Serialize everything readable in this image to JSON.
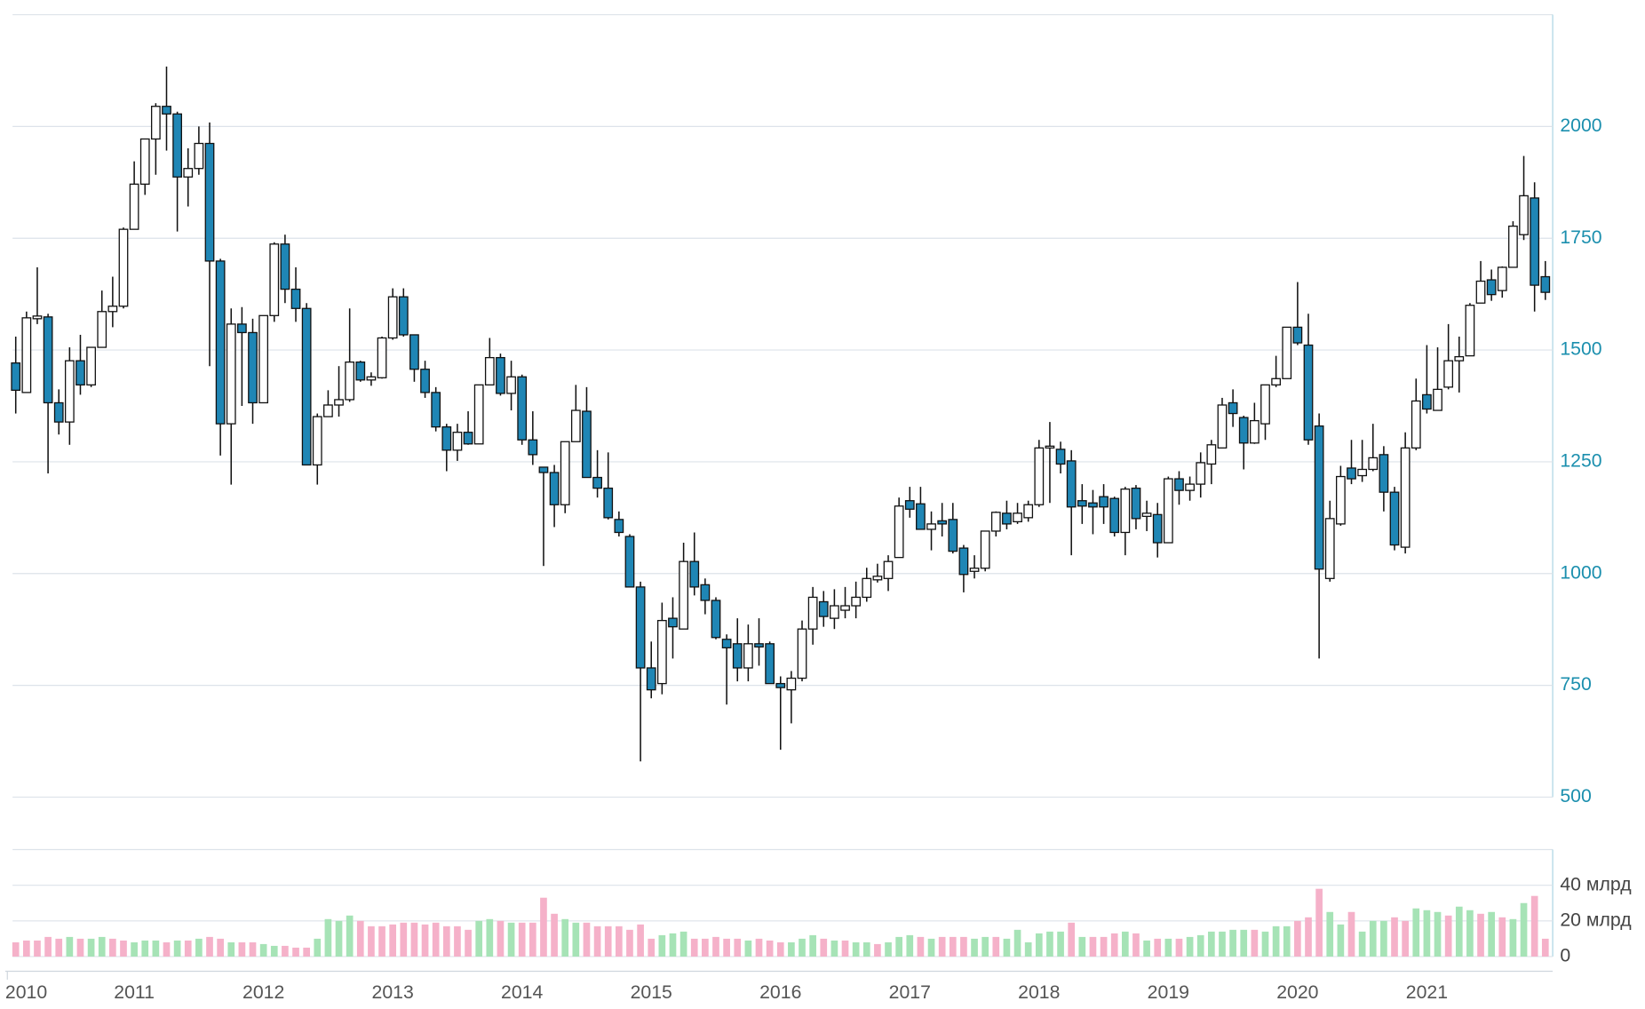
{
  "chart_data": [
    {
      "type": "candlestick",
      "categories": [
        "2010",
        null,
        null,
        null,
        null,
        null,
        null,
        null,
        null,
        null,
        null,
        "2011",
        null,
        null,
        null,
        null,
        null,
        null,
        null,
        null,
        null,
        null,
        null,
        "2012",
        null,
        null,
        null,
        null,
        null,
        null,
        null,
        null,
        null,
        null,
        null,
        "2013",
        null,
        null,
        null,
        null,
        null,
        null,
        null,
        null,
        null,
        null,
        null,
        "2014",
        null,
        null,
        null,
        null,
        null,
        null,
        null,
        null,
        null,
        null,
        null,
        "2015",
        null,
        null,
        null,
        null,
        null,
        null,
        null,
        null,
        null,
        null,
        null,
        "2016",
        null,
        null,
        null,
        null,
        null,
        null,
        null,
        null,
        null,
        null,
        null,
        "2017",
        null,
        null,
        null,
        null,
        null,
        null,
        null,
        null,
        null,
        null,
        null,
        "2018",
        null,
        null,
        null,
        null,
        null,
        null,
        null,
        null,
        null,
        null,
        null,
        "2019",
        null,
        null,
        null,
        null,
        null,
        null,
        null,
        null,
        null,
        null,
        null,
        "2020",
        null,
        null,
        null,
        null,
        null,
        null,
        null,
        null,
        null,
        null,
        null,
        "2021",
        null,
        null,
        null,
        null,
        null,
        null,
        null,
        null,
        null,
        null,
        null
      ],
      "open": [
        1471,
        1405,
        1570,
        1574,
        1382,
        1339,
        1476,
        1422,
        1506,
        1586,
        1598,
        1770,
        1871,
        1972,
        2045,
        2028,
        1887,
        1906,
        1962,
        1699,
        1335,
        1558,
        1539,
        1382,
        1577,
        1737,
        1636,
        1593,
        1243,
        1351,
        1377,
        1389,
        1473,
        1433,
        1438,
        1527,
        1619,
        1534,
        1457,
        1405,
        1328,
        1276,
        1316,
        1290,
        1422,
        1483,
        1403,
        1440,
        1299,
        1238,
        1226,
        1154,
        1295,
        1363,
        1215,
        1191,
        1121,
        1083,
        970,
        789,
        754,
        900,
        876,
        1027,
        975,
        940,
        853,
        843,
        789,
        843,
        843,
        754,
        740,
        766,
        876,
        937,
        900,
        918,
        928,
        947,
        986,
        989,
        1036,
        1163,
        1156,
        1099,
        1118,
        1121,
        1057,
        1005,
        1012,
        1095,
        1135,
        1116,
        1125,
        1154,
        1281,
        1278,
        1252,
        1163,
        1158,
        1172,
        1168,
        1092,
        1191,
        1128,
        1132,
        1069,
        1212,
        1186,
        1200,
        1245,
        1281,
        1382,
        1349,
        1292,
        1335,
        1422,
        1436,
        1551,
        1511,
        1330,
        989,
        1111,
        1236,
        1219,
        1233,
        1266,
        1182,
        1059,
        1281,
        1400,
        1365,
        1417,
        1476,
        1487,
        1605,
        1657,
        1633,
        1685,
        1758,
        1840,
        1664
      ],
      "high": [
        1530,
        1586,
        1685,
        1581,
        1412,
        1506,
        1534,
        1506,
        1633,
        1664,
        1774,
        1922,
        1972,
        2052,
        2134,
        2033,
        1951,
        2000,
        2009,
        1704,
        1593,
        1596,
        1570,
        1577,
        1741,
        1758,
        1685,
        1605,
        1358,
        1410,
        1464,
        1593,
        1476,
        1450,
        1530,
        1638,
        1638,
        1534,
        1476,
        1417,
        1335,
        1335,
        1363,
        1422,
        1527,
        1492,
        1476,
        1445,
        1363,
        1238,
        1243,
        1295,
        1422,
        1417,
        1276,
        1271,
        1139,
        1088,
        982,
        848,
        935,
        947,
        1069,
        1092,
        989,
        947,
        864,
        900,
        886,
        900,
        848,
        770,
        782,
        895,
        970,
        961,
        965,
        970,
        982,
        1013,
        1022,
        1041,
        1170,
        1194,
        1194,
        1139,
        1158,
        1158,
        1064,
        1041,
        1095,
        1139,
        1163,
        1158,
        1163,
        1299,
        1339,
        1295,
        1276,
        1200,
        1187,
        1200,
        1172,
        1194,
        1198,
        1163,
        1158,
        1217,
        1229,
        1217,
        1271,
        1299,
        1393,
        1412,
        1353,
        1382,
        1422,
        1487,
        1551,
        1652,
        1581,
        1358,
        1163,
        1241,
        1299,
        1299,
        1335,
        1285,
        1194,
        1316,
        1436,
        1511,
        1506,
        1558,
        1530,
        1605,
        1699,
        1680,
        1687,
        1788,
        1934,
        1875,
        1699
      ],
      "low": [
        1358,
        1405,
        1558,
        1224,
        1311,
        1288,
        1400,
        1417,
        1506,
        1551,
        1593,
        1770,
        1847,
        1892,
        1946,
        1765,
        1821,
        1892,
        1464,
        1264,
        1199,
        1375,
        1335,
        1382,
        1563,
        1605,
        1563,
        1243,
        1199,
        1351,
        1351,
        1384,
        1429,
        1420,
        1436,
        1523,
        1530,
        1429,
        1393,
        1318,
        1229,
        1252,
        1288,
        1290,
        1422,
        1398,
        1365,
        1288,
        1243,
        1017,
        1104,
        1135,
        1295,
        1215,
        1170,
        1121,
        1083,
        970,
        580,
        721,
        730,
        810,
        876,
        951,
        909,
        853,
        707,
        759,
        759,
        794,
        754,
        606,
        665,
        759,
        841,
        881,
        876,
        900,
        900,
        937,
        980,
        961,
        1036,
        1125,
        1099,
        1052,
        1083,
        1045,
        958,
        989,
        1005,
        1083,
        1099,
        1111,
        1116,
        1149,
        1158,
        1224,
        1041,
        1111,
        1088,
        1111,
        1083,
        1041,
        1099,
        1095,
        1036,
        1069,
        1154,
        1163,
        1170,
        1200,
        1281,
        1328,
        1233,
        1290,
        1299,
        1417,
        1436,
        1511,
        1288,
        810,
        982,
        1107,
        1200,
        1205,
        1229,
        1139,
        1052,
        1045,
        1276,
        1358,
        1365,
        1412,
        1405,
        1487,
        1605,
        1610,
        1617,
        1685,
        1746,
        1586,
        1612
      ],
      "close": [
        1410,
        1572,
        1576,
        1382,
        1339,
        1476,
        1422,
        1506,
        1586,
        1598,
        1770,
        1871,
        1972,
        2045,
        2028,
        1887,
        1906,
        1962,
        1699,
        1335,
        1558,
        1539,
        1382,
        1577,
        1737,
        1636,
        1593,
        1243,
        1351,
        1377,
        1389,
        1473,
        1433,
        1440,
        1527,
        1619,
        1534,
        1457,
        1405,
        1328,
        1276,
        1316,
        1290,
        1422,
        1483,
        1403,
        1440,
        1299,
        1266,
        1226,
        1154,
        1295,
        1365,
        1215,
        1191,
        1125,
        1092,
        970,
        789,
        740,
        895,
        881,
        1027,
        970,
        940,
        857,
        834,
        789,
        843,
        836,
        754,
        745,
        766,
        876,
        947,
        904,
        928,
        928,
        947,
        989,
        994,
        1027,
        1151,
        1144,
        1099,
        1111,
        1111,
        1050,
        998,
        1012,
        1095,
        1137,
        1111,
        1135,
        1154,
        1281,
        1285,
        1245,
        1149,
        1151,
        1149,
        1149,
        1092,
        1189,
        1123,
        1135,
        1069,
        1212,
        1186,
        1200,
        1248,
        1288,
        1377,
        1358,
        1292,
        1342,
        1422,
        1436,
        1551,
        1516,
        1299,
        1010,
        1123,
        1217,
        1212,
        1233,
        1259,
        1182,
        1064,
        1281,
        1386,
        1368,
        1412,
        1476,
        1485,
        1600,
        1654,
        1624,
        1685,
        1777,
        1845,
        1645,
        1629
      ],
      "up_color": "#ffffff",
      "down_color": "#1f86b5",
      "ylim": [
        500,
        2250
      ],
      "yticks": [
        500,
        750,
        1000,
        1250,
        1500,
        1750,
        2000
      ],
      "grid": true
    },
    {
      "type": "bar",
      "values": [
        8,
        9,
        9,
        11,
        10,
        11,
        10,
        10,
        11,
        10,
        9,
        8,
        9,
        9,
        8,
        9,
        9,
        10,
        11,
        10,
        8,
        8,
        8,
        7,
        6,
        6,
        5,
        5,
        10,
        21,
        20,
        23,
        20,
        17,
        17,
        18,
        19,
        19,
        18,
        19,
        17,
        17,
        15,
        20,
        21,
        20,
        19,
        19,
        19,
        33,
        24,
        21,
        19,
        19,
        17,
        17,
        17,
        15,
        18,
        10,
        12,
        13,
        14,
        10,
        10,
        11,
        10,
        10,
        9,
        10,
        9,
        8,
        8,
        10,
        12,
        10,
        9,
        9,
        8,
        8,
        7,
        8,
        11,
        12,
        11,
        10,
        11,
        11,
        11,
        10,
        11,
        11,
        10,
        15,
        8,
        13,
        14,
        14,
        19,
        11,
        11,
        11,
        13,
        14,
        13,
        9,
        10,
        10,
        10,
        11,
        12,
        14,
        14,
        15,
        15,
        15,
        14,
        17,
        17,
        20,
        22,
        38,
        25,
        18,
        25,
        14,
        20,
        20,
        22,
        20,
        27,
        26,
        25,
        23,
        28,
        26,
        24,
        25,
        22,
        21,
        30,
        34,
        10
      ],
      "colors": [
        "#f5b1c9",
        "#f5b1c9",
        "#f5b1c9",
        "#f5b1c9",
        "#f5b1c9",
        "#a6e3b6",
        "#f5b1c9",
        "#a6e3b6",
        "#a6e3b6",
        "#f5b1c9",
        "#f5b1c9",
        "#a6e3b6",
        "#a6e3b6",
        "#a6e3b6",
        "#f5b1c9",
        "#a6e3b6",
        "#f5b1c9",
        "#a6e3b6",
        "#f5b1c9",
        "#f5b1c9",
        "#a6e3b6",
        "#f5b1c9",
        "#f5b1c9",
        "#a6e3b6",
        "#a6e3b6",
        "#f5b1c9",
        "#f5b1c9",
        "#f5b1c9",
        "#a6e3b6",
        "#a6e3b6",
        "#a6e3b6",
        "#a6e3b6",
        "#f5b1c9",
        "#f5b1c9",
        "#f5b1c9",
        "#f5b1c9",
        "#f5b1c9",
        "#f5b1c9",
        "#f5b1c9",
        "#f5b1c9",
        "#f5b1c9",
        "#f5b1c9",
        "#f5b1c9",
        "#a6e3b6",
        "#a6e3b6",
        "#f5b1c9",
        "#a6e3b6",
        "#f5b1c9",
        "#f5b1c9",
        "#f5b1c9",
        "#f5b1c9",
        "#a6e3b6",
        "#a6e3b6",
        "#f5b1c9",
        "#f5b1c9",
        "#f5b1c9",
        "#f5b1c9",
        "#f5b1c9",
        "#f5b1c9",
        "#f5b1c9",
        "#a6e3b6",
        "#a6e3b6",
        "#a6e3b6",
        "#f5b1c9",
        "#f5b1c9",
        "#f5b1c9",
        "#f5b1c9",
        "#f5b1c9",
        "#a6e3b6",
        "#f5b1c9",
        "#f5b1c9",
        "#f5b1c9",
        "#a6e3b6",
        "#a6e3b6",
        "#a6e3b6",
        "#f5b1c9",
        "#a6e3b6",
        "#f5b1c9",
        "#a6e3b6",
        "#a6e3b6",
        "#f5b1c9",
        "#a6e3b6",
        "#a6e3b6",
        "#a6e3b6",
        "#f5b1c9",
        "#a6e3b6",
        "#f5b1c9",
        "#f5b1c9",
        "#f5b1c9",
        "#a6e3b6",
        "#a6e3b6",
        "#f5b1c9",
        "#a6e3b6",
        "#a6e3b6",
        "#a6e3b6",
        "#a6e3b6",
        "#a6e3b6",
        "#a6e3b6",
        "#f5b1c9",
        "#a6e3b6",
        "#f5b1c9",
        "#f5b1c9",
        "#f5b1c9",
        "#a6e3b6",
        "#f5b1c9",
        "#a6e3b6",
        "#f5b1c9",
        "#a6e3b6",
        "#f5b1c9",
        "#a6e3b6",
        "#a6e3b6",
        "#a6e3b6",
        "#a6e3b6",
        "#a6e3b6",
        "#a6e3b6",
        "#f5b1c9",
        "#a6e3b6",
        "#a6e3b6",
        "#a6e3b6",
        "#f5b1c9",
        "#f5b1c9",
        "#f5b1c9",
        "#a6e3b6",
        "#a6e3b6",
        "#f5b1c9",
        "#a6e3b6",
        "#a6e3b6",
        "#a6e3b6",
        "#f5b1c9",
        "#f5b1c9",
        "#a6e3b6",
        "#a6e3b6",
        "#a6e3b6",
        "#f5b1c9",
        "#a6e3b6",
        "#a6e3b6",
        "#f5b1c9",
        "#a6e3b6",
        "#f5b1c9",
        "#a6e3b6",
        "#a6e3b6",
        "#f5b1c9",
        "#f5b1c9"
      ],
      "ylim": [
        0,
        60
      ],
      "yticks": [
        0,
        {
          "value": 20,
          "label": "20 млрд"
        },
        {
          "value": 40,
          "label": "40 млрд"
        }
      ],
      "grid": true
    }
  ]
}
